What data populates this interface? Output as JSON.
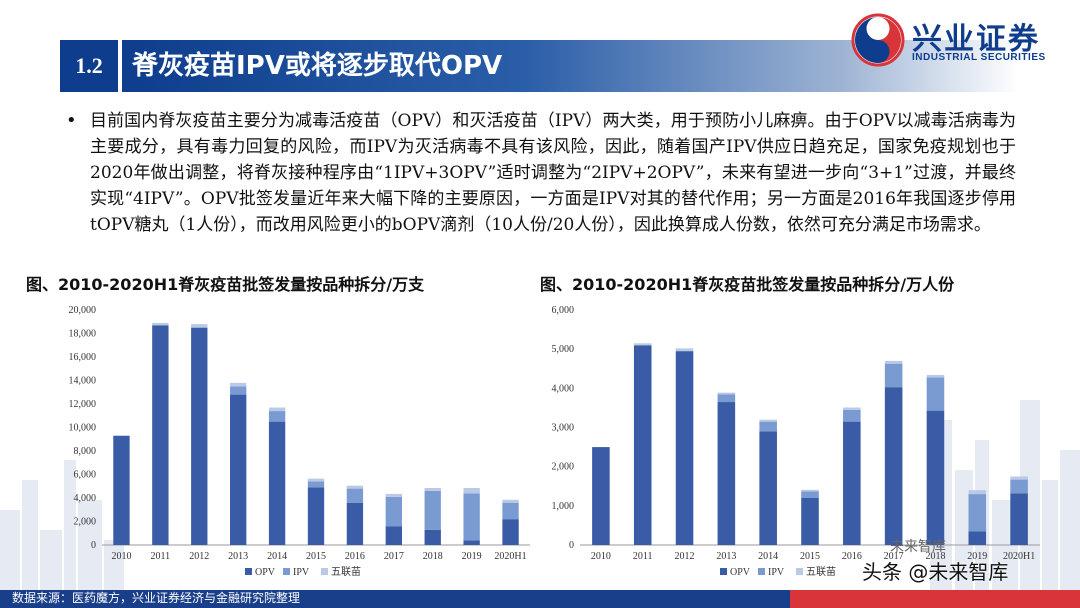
{
  "header": {
    "section_number": "1.2",
    "title": "脊灰疫苗IPV或将逐步取代OPV",
    "logo_cn": "兴业证券",
    "logo_en": "INDUSTRIAL SECURITIES"
  },
  "body": {
    "paragraph": "目前国内脊灰疫苗主要分为减毒活疫苗（OPV）和灭活疫苗（IPV）两大类，用于预防小儿麻痹。由于OPV以减毒活病毒为主要成分，具有毒力回复的风险，而IPV为灭活病毒不具有该风险，因此，随着国产IPV供应日趋充足，国家免疫规划也于2020年做出调整，将脊灰接种程序由“1IPV+3OPV”适时调整为“2IPV+2OPV”，未来有望进一步向“3+1”过渡，并最终实现“4IPV”。OPV批签发量近年来大幅下降的主要原因，一方面是IPV对其的替代作用；另一方面是2016年我国逐步停用tOPV糖丸（1人份），而改用风险更小的bOPV滴剂（10人份/20人份），因此换算成人份数，依然可充分满足市场需求。"
  },
  "figures": {
    "left_title": "图、2010-2020H1脊灰疫苗批签发量按品种拆分/万支",
    "right_title": "图、2010-2020H1脊灰疫苗批签发量按品种拆分/万人份"
  },
  "chart_data": [
    {
      "type": "bar",
      "stacked": true,
      "title": "图、2010-2020H1脊灰疫苗批签发量按品种拆分/万支",
      "categories": [
        "2010",
        "2011",
        "2012",
        "2013",
        "2014",
        "2015",
        "2016",
        "2017",
        "2018",
        "2019",
        "2020H1"
      ],
      "series": [
        {
          "name": "OPV",
          "color": "#3a5ba5",
          "values": [
            9300,
            18700,
            18500,
            12800,
            10500,
            4900,
            3600,
            1600,
            1300,
            400,
            2200
          ]
        },
        {
          "name": "IPV",
          "color": "#7a9bd2",
          "values": [
            0,
            0,
            0,
            700,
            900,
            500,
            1200,
            2500,
            3300,
            4000,
            1400
          ]
        },
        {
          "name": "五联苗",
          "color": "#b9c9e6",
          "values": [
            0,
            200,
            300,
            300,
            300,
            250,
            250,
            250,
            250,
            450,
            250
          ]
        }
      ],
      "ylim": [
        0,
        20000
      ],
      "yticks": [
        "0",
        "2,000",
        "4,000",
        "6,000",
        "8,000",
        "10,000",
        "12,000",
        "14,000",
        "16,000",
        "18,000",
        "20,000"
      ],
      "legend": "bottom",
      "grid": false
    },
    {
      "type": "bar",
      "stacked": true,
      "title": "图、2010-2020H1脊灰疫苗批签发量按品种拆分/万人份",
      "categories": [
        "2010",
        "2011",
        "2012",
        "2013",
        "2014",
        "2015",
        "2016",
        "2017",
        "2018",
        "2019",
        "2020H1"
      ],
      "series": [
        {
          "name": "OPV",
          "color": "#3a5ba5",
          "values": [
            2500,
            5100,
            4950,
            3650,
            2900,
            1200,
            3150,
            4030,
            3430,
            350,
            1320
          ]
        },
        {
          "name": "IPV",
          "color": "#7a9bd2",
          "values": [
            0,
            0,
            0,
            200,
            250,
            170,
            300,
            600,
            850,
            950,
            350
          ]
        },
        {
          "name": "五联苗",
          "color": "#b9c9e6",
          "values": [
            0,
            50,
            70,
            40,
            50,
            40,
            60,
            70,
            60,
            100,
            80
          ]
        }
      ],
      "ylim": [
        0,
        6000
      ],
      "yticks": [
        "0",
        "1,000",
        "2,000",
        "3,000",
        "4,000",
        "5,000",
        "6,000"
      ],
      "legend": "bottom",
      "grid": false
    }
  ],
  "footer": {
    "source": "数据来源：医药魔方，兴业证券经济与金融研究院整理",
    "watermark": "头条 @未来智库",
    "watermark_top": "未来智库"
  },
  "colors": {
    "brand_blue": "#0d3d8c",
    "footer_red": "#d8343a"
  }
}
